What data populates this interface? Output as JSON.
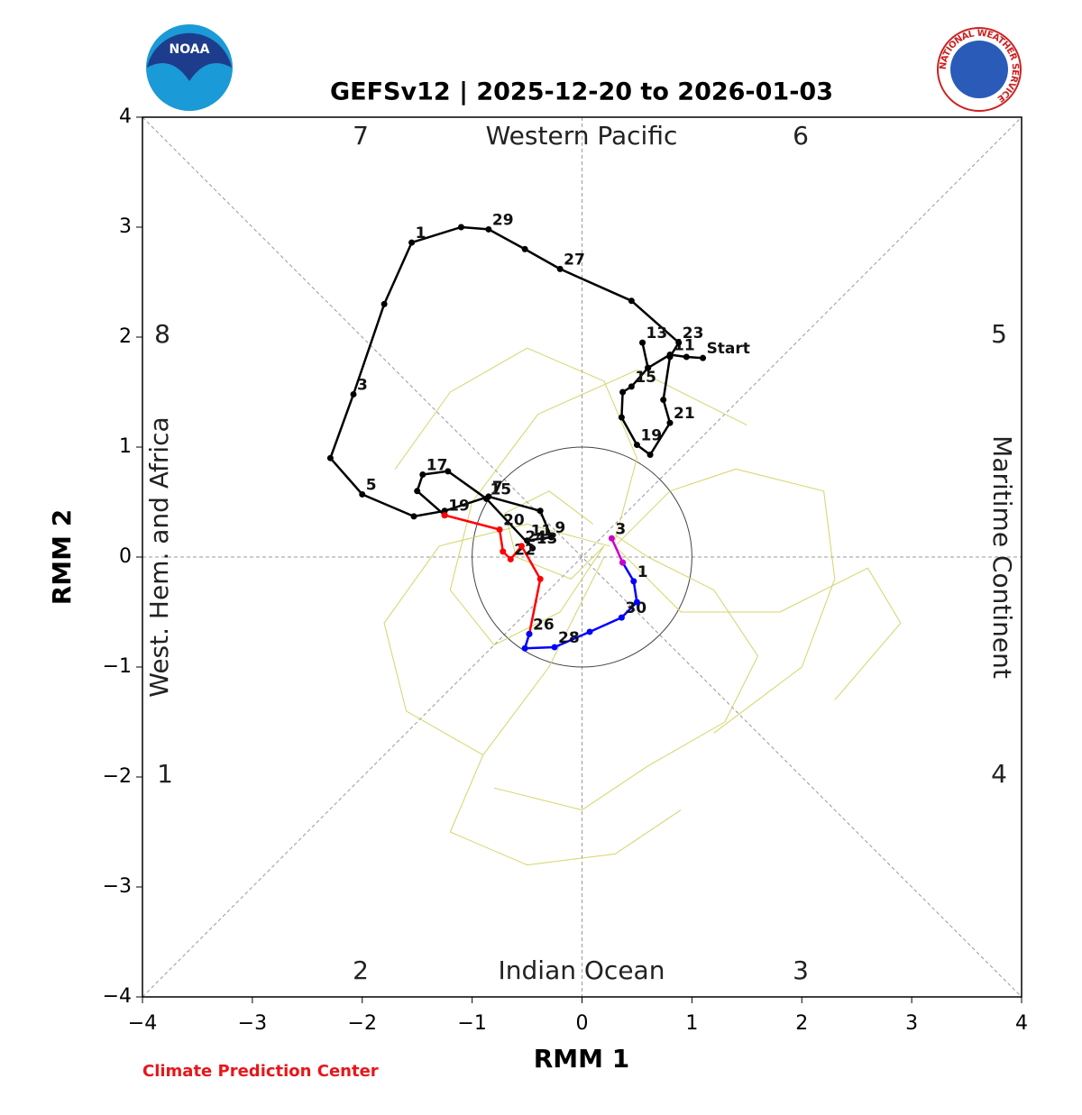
{
  "logos": {
    "noaa": "NOAA",
    "nws": "NATIONAL WEATHER SERVICE"
  },
  "chart_data": {
    "type": "phase",
    "title": "GEFSv12 | 2025-12-20 to 2026-01-03",
    "x_label": "RMM 1",
    "y_label": "RMM 2",
    "source": "Climate Prediction Center",
    "phases": [
      "1",
      "2",
      "3",
      "4",
      "5",
      "6",
      "7",
      "8"
    ],
    "regions": [
      "Western Pacific",
      "Indian Ocean",
      "West. Hem. and Africa",
      "Maritime Continent"
    ],
    "xlim": [
      -4,
      4
    ],
    "ylim": [
      -4,
      4
    ],
    "xticks": [
      {
        "value": -4,
        "label": "−4"
      },
      {
        "value": -3,
        "label": "−3"
      },
      {
        "value": -2,
        "label": "−2"
      },
      {
        "value": -1,
        "label": "−1"
      },
      0,
      1,
      2,
      3,
      4
    ],
    "yticks": [
      {
        "value": -4,
        "label": "−4"
      },
      {
        "value": -3,
        "label": "−3"
      },
      {
        "value": -2,
        "label": "−2"
      },
      {
        "value": -1,
        "label": "−1"
      },
      0,
      1,
      2,
      3,
      4
    ],
    "series": [
      {
        "color": "#d4d46a",
        "x": [
          0.3,
          0.6,
          1.2,
          1.6,
          1.3,
          0.6,
          0.0,
          -0.8
        ],
        "values": [
          0.2,
          0.0,
          -0.3,
          -0.9,
          -1.5,
          -1.9,
          -2.3,
          -2.1
        ]
      },
      {
        "color": "#d4d46a",
        "x": [
          0.2,
          -0.2,
          -0.8,
          -1.2,
          -1.0,
          -0.4,
          0.5,
          1.5
        ],
        "values": [
          0.1,
          -0.5,
          -0.8,
          -0.3,
          0.5,
          1.3,
          1.7,
          1.2
        ]
      },
      {
        "color": "#d4d46a",
        "x": [
          0.3,
          0.8,
          1.4,
          2.2,
          2.3,
          2.0,
          1.2
        ],
        "values": [
          0.1,
          0.6,
          0.8,
          0.6,
          -0.2,
          -1.0,
          -1.6
        ]
      },
      {
        "color": "#d4d46a",
        "x": [
          0.2,
          -0.3,
          -0.9,
          -1.2,
          -0.5,
          0.3,
          0.9
        ],
        "values": [
          0.0,
          -1.0,
          -1.8,
          -2.5,
          -2.8,
          -2.7,
          -2.3
        ]
      },
      {
        "color": "#d4d46a",
        "x": [
          0.25,
          -0.5,
          -1.3,
          -1.8,
          -1.6,
          -0.9
        ],
        "values": [
          0.1,
          0.3,
          0.1,
          -0.6,
          -1.4,
          -1.8
        ]
      },
      {
        "color": "#d4d46a",
        "x": [
          0.3,
          0.5,
          0.2,
          -0.5,
          -1.2,
          -1.7
        ],
        "values": [
          0.15,
          0.9,
          1.6,
          1.9,
          1.5,
          0.8
        ]
      },
      {
        "color": "#d4d46a",
        "x": [
          0.3,
          0.9,
          1.8,
          2.6,
          2.9,
          2.3
        ],
        "values": [
          0.1,
          -0.5,
          -0.5,
          -0.1,
          -0.6,
          -1.3
        ]
      },
      {
        "color": "#d4d46a",
        "x": [
          0.2,
          -0.1,
          -0.6,
          -0.7,
          -0.3,
          0.1
        ],
        "values": [
          0.1,
          -0.2,
          0.0,
          0.4,
          0.6,
          0.3
        ]
      },
      {
        "color": "#000000",
        "x": [
          1.1,
          0.95,
          0.8,
          0.6,
          0.55,
          0.6,
          0.45,
          0.37,
          0.36,
          0.5,
          0.62,
          0.8,
          0.74,
          0.8,
          0.88,
          0.45,
          -0.2,
          -0.52,
          -0.85,
          -1.1,
          -1.55,
          -1.8,
          -2.08,
          -2.29,
          -2.0,
          -1.53,
          -1.25,
          -0.85,
          -0.38,
          -0.28,
          -0.5,
          -0.45,
          -0.87,
          -1.22,
          -1.45,
          -1.5,
          -1.25
        ],
        "values": [
          1.81,
          1.82,
          1.84,
          1.72,
          1.95,
          1.72,
          1.55,
          1.5,
          1.27,
          1.02,
          0.93,
          1.22,
          1.43,
          1.82,
          1.95,
          2.33,
          2.62,
          2.8,
          2.98,
          3.0,
          2.86,
          2.3,
          1.48,
          0.9,
          0.57,
          0.37,
          0.42,
          0.55,
          0.42,
          0.18,
          0.15,
          0.08,
          0.53,
          0.78,
          0.75,
          0.6,
          0.38
        ],
        "labels": [
          "Start",
          null,
          "11",
          null,
          "13",
          null,
          "15",
          null,
          null,
          "19",
          null,
          "21",
          null,
          null,
          "23",
          null,
          "27",
          null,
          "29",
          null,
          "1",
          null,
          "3",
          null,
          "5",
          null,
          null,
          "7",
          null,
          "9",
          "11",
          "13",
          "15",
          null,
          "17",
          null,
          "19"
        ]
      },
      {
        "color": "#ff0000",
        "x": [
          -1.25,
          -0.75,
          -0.72,
          -0.65,
          -0.55,
          -0.38,
          -0.48
        ],
        "values": [
          0.38,
          0.25,
          0.05,
          -0.02,
          0.1,
          -0.2,
          -0.7
        ],
        "labels": [
          null,
          "20",
          null,
          "22",
          "24",
          null,
          null
        ]
      },
      {
        "color": "#0000ff",
        "x": [
          -0.48,
          -0.52,
          -0.25,
          0.07,
          0.36,
          0.5,
          0.47,
          0.37
        ],
        "values": [
          -0.7,
          -0.83,
          -0.82,
          -0.68,
          -0.55,
          -0.41,
          -0.22,
          -0.05
        ],
        "labels": [
          "26",
          null,
          "28",
          null,
          "30",
          null,
          "1",
          null
        ]
      },
      {
        "color": "#cc00cc",
        "x": [
          0.37,
          0.27
        ],
        "values": [
          -0.05,
          0.17
        ],
        "labels": [
          null,
          "3"
        ]
      }
    ]
  }
}
